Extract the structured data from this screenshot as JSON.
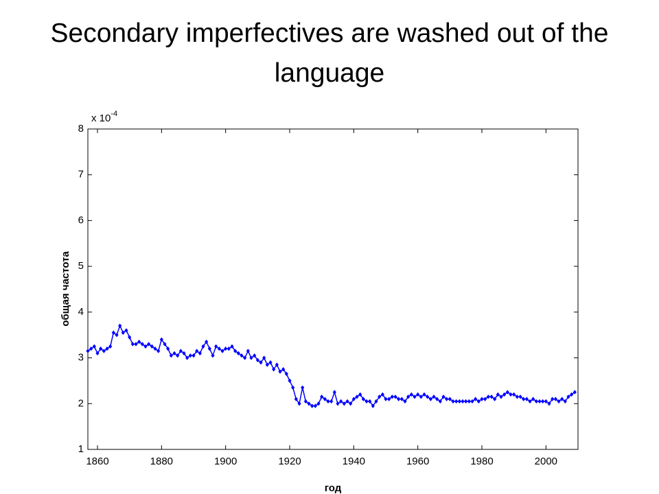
{
  "chart_data": {
    "type": "line",
    "title": "Secondary imperfectives are washed out of the language",
    "xlabel": "год",
    "ylabel": "общая частота",
    "axis_multiplier": {
      "base": "x 10",
      "exponent": "-4"
    },
    "xlim": [
      1857,
      2010
    ],
    "xticks": [
      1860,
      1880,
      1900,
      1920,
      1940,
      1960,
      1980,
      2000
    ],
    "ylim": [
      1,
      8
    ],
    "yticks": [
      1,
      2,
      3,
      4,
      5,
      6,
      7,
      8
    ],
    "x": [
      1857,
      1858,
      1859,
      1860,
      1861,
      1862,
      1863,
      1864,
      1865,
      1866,
      1867,
      1868,
      1869,
      1870,
      1871,
      1872,
      1873,
      1874,
      1875,
      1876,
      1877,
      1878,
      1879,
      1880,
      1881,
      1882,
      1883,
      1884,
      1885,
      1886,
      1887,
      1888,
      1889,
      1890,
      1891,
      1892,
      1893,
      1894,
      1895,
      1896,
      1897,
      1898,
      1899,
      1900,
      1901,
      1902,
      1903,
      1904,
      1905,
      1906,
      1907,
      1908,
      1909,
      1910,
      1911,
      1912,
      1913,
      1914,
      1915,
      1916,
      1917,
      1918,
      1919,
      1920,
      1921,
      1922,
      1923,
      1924,
      1925,
      1926,
      1927,
      1928,
      1929,
      1930,
      1931,
      1932,
      1933,
      1934,
      1935,
      1936,
      1937,
      1938,
      1939,
      1940,
      1941,
      1942,
      1943,
      1944,
      1945,
      1946,
      1947,
      1948,
      1949,
      1950,
      1951,
      1952,
      1953,
      1954,
      1955,
      1956,
      1957,
      1958,
      1959,
      1960,
      1961,
      1962,
      1963,
      1964,
      1965,
      1966,
      1967,
      1968,
      1969,
      1970,
      1971,
      1972,
      1973,
      1974,
      1975,
      1976,
      1977,
      1978,
      1979,
      1980,
      1981,
      1982,
      1983,
      1984,
      1985,
      1986,
      1987,
      1988,
      1989,
      1990,
      1991,
      1992,
      1993,
      1994,
      1995,
      1996,
      1997,
      1998,
      1999,
      2000,
      2001,
      2002,
      2003,
      2004,
      2005,
      2006,
      2007,
      2008,
      2009
    ],
    "series": [
      {
        "color": "#0000ff",
        "values": [
          3.15,
          3.2,
          3.25,
          3.1,
          3.2,
          3.15,
          3.2,
          3.25,
          3.55,
          3.5,
          3.7,
          3.55,
          3.6,
          3.45,
          3.3,
          3.3,
          3.35,
          3.3,
          3.25,
          3.3,
          3.25,
          3.2,
          3.15,
          3.4,
          3.3,
          3.2,
          3.05,
          3.1,
          3.05,
          3.15,
          3.1,
          3.0,
          3.05,
          3.05,
          3.15,
          3.1,
          3.25,
          3.35,
          3.2,
          3.05,
          3.25,
          3.2,
          3.15,
          3.2,
          3.2,
          3.25,
          3.15,
          3.1,
          3.05,
          3.0,
          3.15,
          3.0,
          3.05,
          2.95,
          2.9,
          3.0,
          2.85,
          2.9,
          2.75,
          2.85,
          2.7,
          2.75,
          2.65,
          2.5,
          2.35,
          2.1,
          2.0,
          2.35,
          2.05,
          2.0,
          1.95,
          1.95,
          2.0,
          2.15,
          2.1,
          2.05,
          2.05,
          2.25,
          2.0,
          2.05,
          2.0,
          2.05,
          2.0,
          2.1,
          2.15,
          2.2,
          2.1,
          2.05,
          2.05,
          1.95,
          2.05,
          2.15,
          2.2,
          2.1,
          2.1,
          2.15,
          2.15,
          2.1,
          2.1,
          2.05,
          2.15,
          2.2,
          2.15,
          2.2,
          2.15,
          2.2,
          2.15,
          2.1,
          2.15,
          2.1,
          2.05,
          2.15,
          2.1,
          2.1,
          2.05,
          2.05,
          2.05,
          2.05,
          2.05,
          2.05,
          2.05,
          2.1,
          2.05,
          2.1,
          2.1,
          2.15,
          2.15,
          2.1,
          2.2,
          2.15,
          2.2,
          2.25,
          2.2,
          2.2,
          2.15,
          2.15,
          2.1,
          2.1,
          2.05,
          2.1,
          2.05,
          2.05,
          2.05,
          2.05,
          2.0,
          2.1,
          2.1,
          2.05,
          2.1,
          2.05,
          2.15,
          2.2,
          2.25
        ]
      }
    ]
  }
}
